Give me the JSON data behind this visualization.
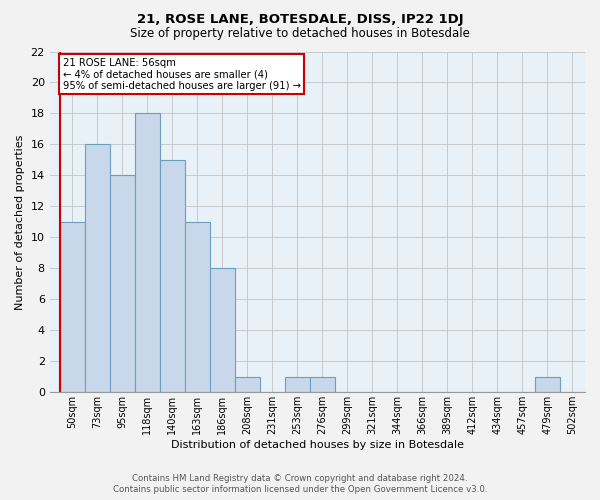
{
  "title": "21, ROSE LANE, BOTESDALE, DISS, IP22 1DJ",
  "subtitle": "Size of property relative to detached houses in Botesdale",
  "xlabel": "Distribution of detached houses by size in Botesdale",
  "ylabel": "Number of detached properties",
  "bar_color": "#c8d8ea",
  "bar_edge_color": "#6a9fc0",
  "background_color": "#e8f0f8",
  "fig_background_color": "#f2f2f2",
  "grid_color": "#bbbbbb",
  "annotation_border_color": "#cc0000",
  "subject_line_color": "#cc0000",
  "categories": [
    "50sqm",
    "73sqm",
    "95sqm",
    "118sqm",
    "140sqm",
    "163sqm",
    "186sqm",
    "208sqm",
    "231sqm",
    "253sqm",
    "276sqm",
    "299sqm",
    "321sqm",
    "344sqm",
    "366sqm",
    "389sqm",
    "412sqm",
    "434sqm",
    "457sqm",
    "479sqm",
    "502sqm"
  ],
  "values": [
    11,
    16,
    14,
    18,
    15,
    11,
    8,
    1,
    0,
    1,
    1,
    0,
    0,
    0,
    0,
    0,
    0,
    0,
    0,
    1,
    0
  ],
  "annotation_line1": "21 ROSE LANE: 56sqm",
  "annotation_line2": "← 4% of detached houses are smaller (4)",
  "annotation_line3": "95% of semi-detached houses are larger (91) →",
  "ylim": [
    0,
    22
  ],
  "yticks": [
    0,
    2,
    4,
    6,
    8,
    10,
    12,
    14,
    16,
    18,
    20,
    22
  ],
  "footer_line1": "Contains HM Land Registry data © Crown copyright and database right 2024.",
  "footer_line2": "Contains public sector information licensed under the Open Government Licence v3.0."
}
